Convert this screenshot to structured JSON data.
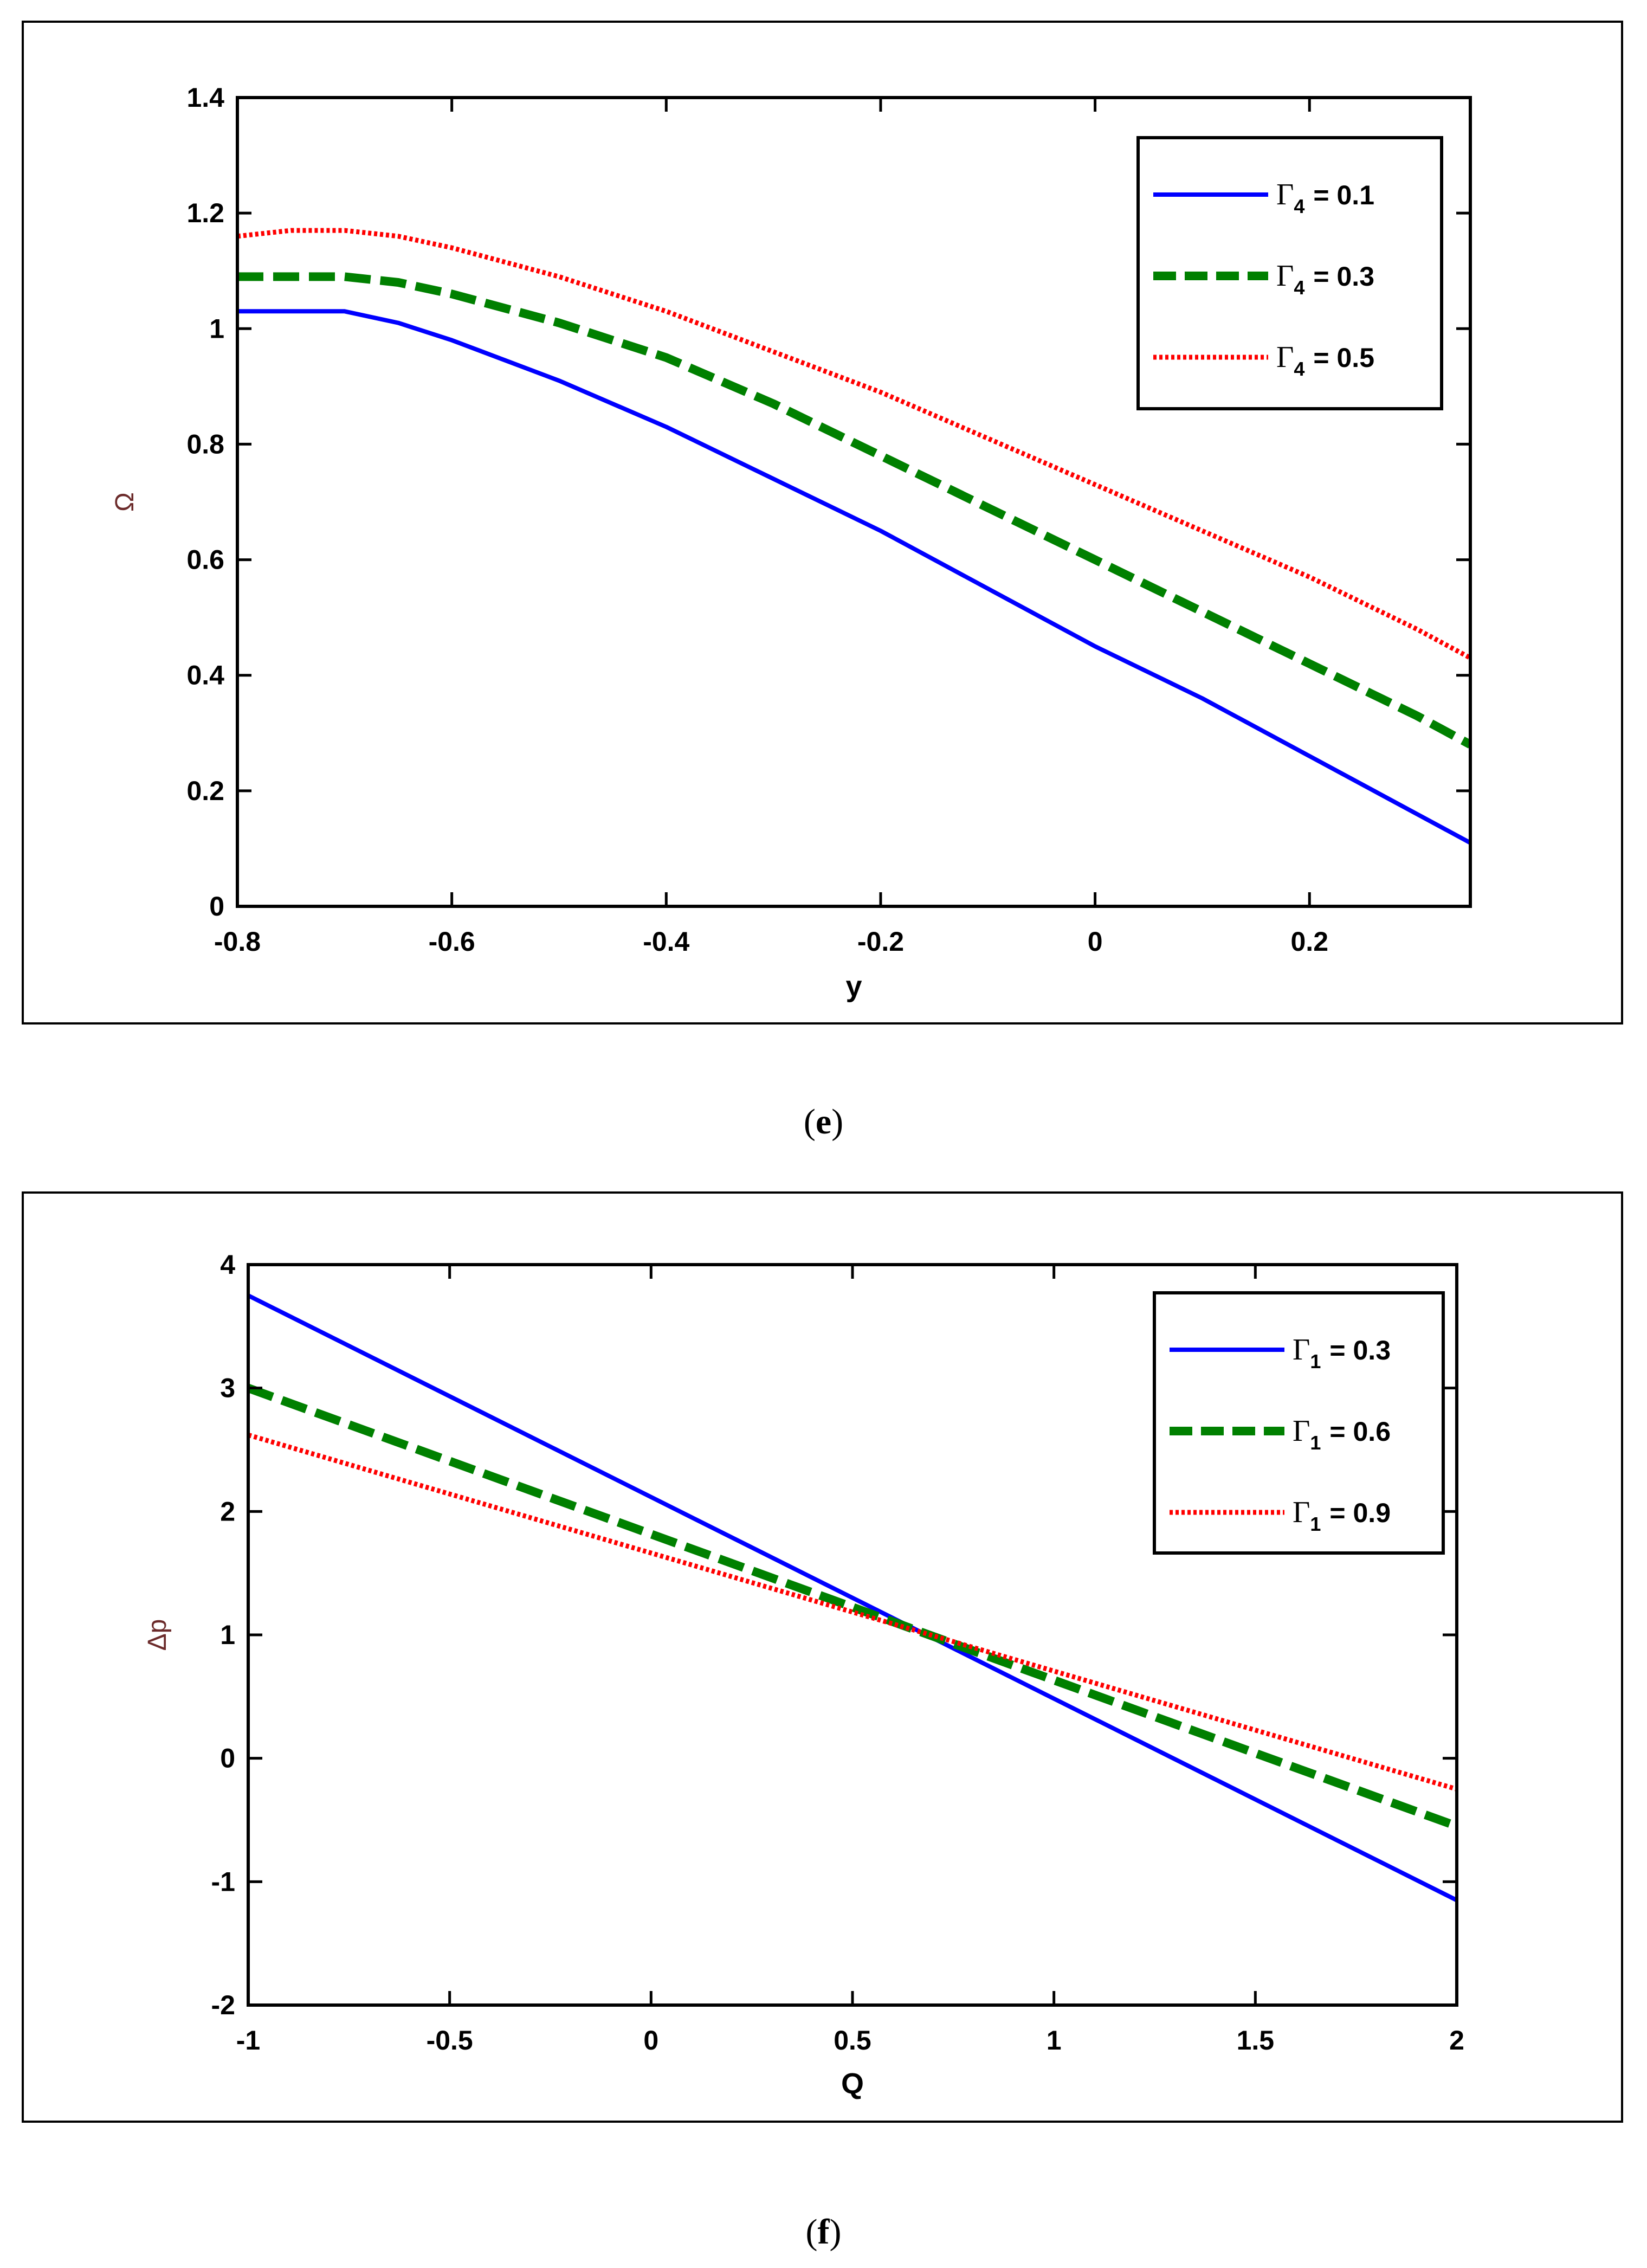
{
  "captions": {
    "e": "e",
    "f": "f"
  },
  "chart_data": [
    {
      "panel": "e",
      "type": "line",
      "title": "",
      "xlabel": "y",
      "ylabel": "Ω",
      "xlim": [
        -0.8,
        0.35
      ],
      "ylim": [
        0,
        1.4
      ],
      "xticks": [
        -0.8,
        -0.6,
        -0.4,
        -0.2,
        0,
        0.2
      ],
      "xtick_labels": [
        "-0.8",
        "-0.6",
        "-0.4",
        "-0.2",
        "0",
        "0.2"
      ],
      "yticks": [
        0,
        0.2,
        0.4,
        0.6,
        0.8,
        1,
        1.2,
        1.4
      ],
      "ytick_labels": [
        "0",
        "0.2",
        "0.4",
        "0.6",
        "0.8",
        "1",
        "1.2",
        "1.4"
      ],
      "grid": false,
      "legend": "top-right",
      "series": [
        {
          "name": "Γ4 = 0.1",
          "legend_symbol": "Γ",
          "legend_sub": "4",
          "legend_value": "= 0.1",
          "color": "#0000ff",
          "style": "solid",
          "x": [
            -0.8,
            -0.75,
            -0.7,
            -0.65,
            -0.6,
            -0.5,
            -0.4,
            -0.3,
            -0.2,
            -0.1,
            0,
            0.1,
            0.2,
            0.3,
            0.35
          ],
          "y": [
            1.03,
            1.03,
            1.03,
            1.01,
            0.98,
            0.91,
            0.83,
            0.74,
            0.65,
            0.55,
            0.45,
            0.36,
            0.26,
            0.16,
            0.11
          ]
        },
        {
          "name": "Γ4 = 0.3",
          "legend_symbol": "Γ",
          "legend_sub": "4",
          "legend_value": "= 0.3",
          "color": "#008000",
          "style": "dashed",
          "x": [
            -0.8,
            -0.75,
            -0.7,
            -0.65,
            -0.6,
            -0.5,
            -0.4,
            -0.3,
            -0.2,
            -0.1,
            0,
            0.1,
            0.2,
            0.3,
            0.35
          ],
          "y": [
            1.09,
            1.09,
            1.09,
            1.08,
            1.06,
            1.01,
            0.95,
            0.87,
            0.78,
            0.69,
            0.6,
            0.51,
            0.42,
            0.33,
            0.28
          ]
        },
        {
          "name": "Γ4 = 0.5",
          "legend_symbol": "Γ",
          "legend_sub": "4",
          "legend_value": "= 0.5",
          "color": "#ff0000",
          "style": "dotted",
          "x": [
            -0.8,
            -0.75,
            -0.7,
            -0.65,
            -0.6,
            -0.5,
            -0.4,
            -0.3,
            -0.2,
            -0.1,
            0,
            0.1,
            0.2,
            0.3,
            0.35
          ],
          "y": [
            1.16,
            1.17,
            1.17,
            1.16,
            1.14,
            1.09,
            1.03,
            0.96,
            0.89,
            0.81,
            0.73,
            0.65,
            0.57,
            0.48,
            0.43
          ]
        }
      ]
    },
    {
      "panel": "f",
      "type": "line",
      "title": "",
      "xlabel": "Q",
      "ylabel": "Δp",
      "xlim": [
        -1,
        2
      ],
      "ylim": [
        -2,
        4
      ],
      "xticks": [
        -1,
        -0.5,
        0,
        0.5,
        1,
        1.5,
        2
      ],
      "xtick_labels": [
        "-1",
        "-0.5",
        "0",
        "0.5",
        "1",
        "1.5",
        "2"
      ],
      "yticks": [
        -2,
        -1,
        0,
        1,
        2,
        3,
        4
      ],
      "ytick_labels": [
        "-2",
        "-1",
        "0",
        "1",
        "2",
        "3",
        "4"
      ],
      "grid": false,
      "legend": "top-right",
      "series": [
        {
          "name": "Γ1 = 0.3",
          "legend_symbol": "Γ",
          "legend_sub": "1",
          "legend_value": "= 0.3",
          "color": "#0000ff",
          "style": "solid",
          "x": [
            -1,
            2
          ],
          "y": [
            3.75,
            -1.15
          ]
        },
        {
          "name": "Γ1 = 0.6",
          "legend_symbol": "Γ",
          "legend_sub": "1",
          "legend_value": "= 0.6",
          "color": "#008000",
          "style": "dashed",
          "x": [
            -1,
            2
          ],
          "y": [
            3.0,
            -0.55
          ]
        },
        {
          "name": "Γ1 = 0.9",
          "legend_symbol": "Γ",
          "legend_sub": "1",
          "legend_value": "= 0.9",
          "color": "#ff0000",
          "style": "dotted",
          "x": [
            -1,
            2
          ],
          "y": [
            2.62,
            -0.25
          ]
        }
      ]
    }
  ]
}
